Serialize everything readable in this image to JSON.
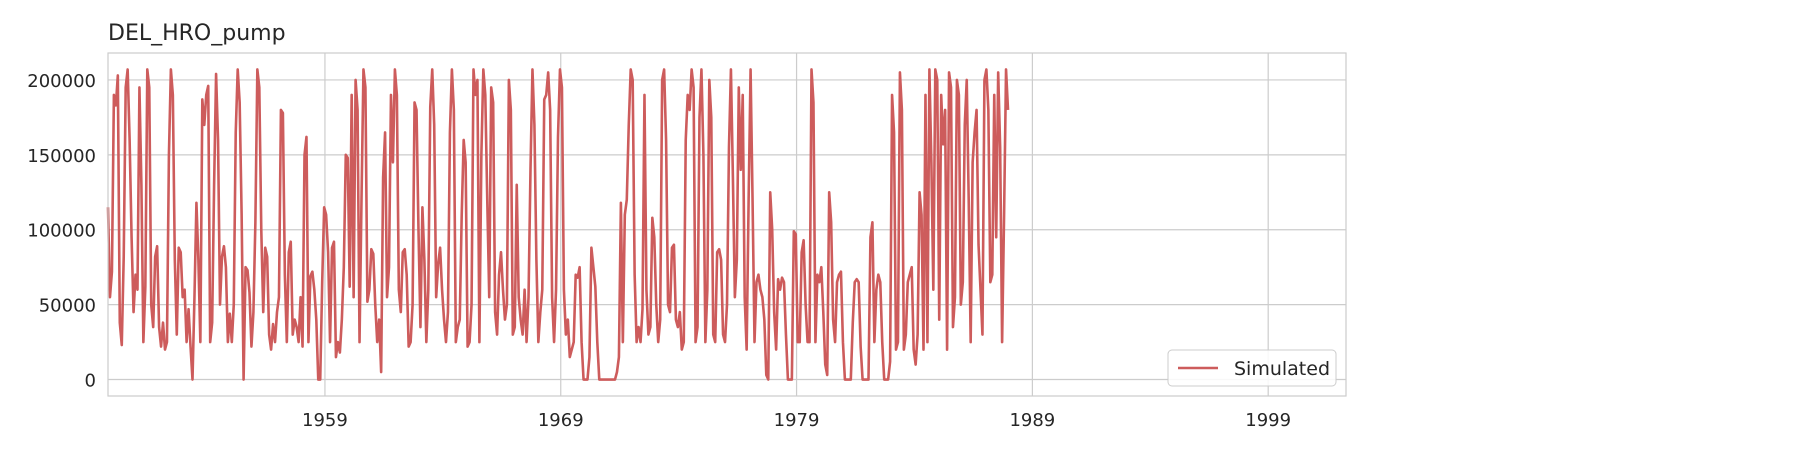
{
  "chart_data": {
    "type": "line",
    "title": "DEL_HRO_pump",
    "xlabel": "",
    "ylabel": "",
    "x_start_year": 1949.8,
    "x_step_months": 1,
    "xlim": [
      1949.8,
      2002.3
    ],
    "ylim": [
      -11000,
      218000
    ],
    "x_ticks": [
      1959,
      1969,
      1979,
      1989,
      1999
    ],
    "x_tick_labels": [
      "1959",
      "1969",
      "1979",
      "1989",
      "1999"
    ],
    "y_ticks": [
      0,
      50000,
      100000,
      150000,
      200000
    ],
    "y_tick_labels": [
      "0",
      "50000",
      "100000",
      "150000",
      "200000"
    ],
    "grid": true,
    "legend": {
      "position": "bottom-right",
      "entries": [
        "Simulated"
      ]
    },
    "series": [
      {
        "name": "Simulated",
        "color": "#cd5c5c",
        "values": [
          115000,
          55000,
          72000,
          190000,
          183000,
          203000,
          38000,
          23000,
          82000,
          195000,
          207000,
          160000,
          95000,
          45000,
          70000,
          60000,
          195000,
          130000,
          25000,
          62000,
          207000,
          195000,
          50000,
          35000,
          82000,
          89000,
          35000,
          22000,
          38000,
          20000,
          25000,
          150000,
          207000,
          190000,
          80000,
          30000,
          88000,
          85000,
          55000,
          60000,
          25000,
          47000,
          22000,
          0,
          55000,
          118000,
          80000,
          25000,
          187000,
          170000,
          190000,
          196000,
          25000,
          38000,
          130000,
          204000,
          160000,
          50000,
          82000,
          89000,
          75000,
          25000,
          44000,
          25000,
          50000,
          165000,
          207000,
          185000,
          110000,
          0,
          75000,
          73000,
          58000,
          22000,
          45000,
          105000,
          207000,
          195000,
          100000,
          45000,
          88000,
          82000,
          30000,
          20000,
          37000,
          25000,
          45000,
          55000,
          180000,
          178000,
          70000,
          25000,
          85000,
          92000,
          30000,
          40000,
          35000,
          25000,
          55000,
          22000,
          150000,
          162000,
          25000,
          69000,
          72000,
          60000,
          40000,
          0,
          0,
          65000,
          115000,
          110000,
          85000,
          25000,
          88000,
          92000,
          15000,
          25000,
          18000,
          40000,
          75000,
          150000,
          148000,
          62000,
          190000,
          55000,
          200000,
          180000,
          25000,
          120000,
          207000,
          195000,
          52000,
          60000,
          87000,
          84000,
          50000,
          25000,
          40000,
          5000,
          135000,
          165000,
          55000,
          75000,
          190000,
          145000,
          207000,
          190000,
          60000,
          45000,
          85000,
          87000,
          70000,
          22000,
          25000,
          50000,
          185000,
          180000,
          100000,
          35000,
          115000,
          80000,
          25000,
          60000,
          182000,
          207000,
          170000,
          55000,
          77000,
          88000,
          60000,
          40000,
          25000,
          45000,
          165000,
          207000,
          180000,
          25000,
          35000,
          40000,
          110000,
          160000,
          145000,
          22000,
          25000,
          50000,
          207000,
          190000,
          200000,
          25000,
          150000,
          207000,
          190000,
          120000,
          55000,
          195000,
          185000,
          45000,
          30000,
          70000,
          85000,
          60000,
          40000,
          50000,
          200000,
          180000,
          30000,
          35000,
          130000,
          55000,
          40000,
          30000,
          60000,
          25000,
          55000,
          140000,
          207000,
          170000,
          80000,
          25000,
          45000,
          60000,
          187000,
          190000,
          205000,
          180000,
          55000,
          25000,
          60000,
          162000,
          207000,
          195000,
          60000,
          30000,
          40000,
          15000,
          20000,
          25000,
          70000,
          68000,
          75000,
          25000,
          0,
          0,
          0,
          15000,
          88000,
          75000,
          62000,
          25000,
          0,
          0,
          0,
          0,
          0,
          0,
          0,
          0,
          0,
          5000,
          15000,
          118000,
          25000,
          110000,
          120000,
          170000,
          207000,
          200000,
          70000,
          25000,
          35000,
          25000,
          47000,
          190000,
          60000,
          30000,
          35000,
          108000,
          95000,
          50000,
          25000,
          40000,
          200000,
          207000,
          160000,
          50000,
          45000,
          88000,
          90000,
          40000,
          35000,
          45000,
          20000,
          25000,
          160000,
          190000,
          180000,
          207000,
          195000,
          25000,
          35000,
          175000,
          207000,
          150000,
          25000,
          60000,
          200000,
          175000,
          30000,
          25000,
          85000,
          87000,
          80000,
          30000,
          25000,
          50000,
          155000,
          207000,
          135000,
          55000,
          80000,
          195000,
          140000,
          190000,
          55000,
          20000,
          120000,
          207000,
          120000,
          25000,
          65000,
          70000,
          60000,
          55000,
          40000,
          3000,
          0,
          125000,
          100000,
          45000,
          20000,
          67000,
          60000,
          68000,
          65000,
          30000,
          0,
          0,
          0,
          99000,
          97000,
          25000,
          25000,
          85000,
          93000,
          50000,
          25000,
          25000,
          207000,
          185000,
          25000,
          70000,
          65000,
          75000,
          45000,
          10000,
          3000,
          125000,
          105000,
          40000,
          25000,
          65000,
          70000,
          72000,
          25000,
          0,
          0,
          0,
          0,
          38000,
          65000,
          67000,
          65000,
          22000,
          0,
          0,
          0,
          0,
          95000,
          105000,
          25000,
          60000,
          70000,
          65000,
          25000,
          0,
          0,
          0,
          12000,
          190000,
          165000,
          20000,
          25000,
          205000,
          180000,
          20000,
          30000,
          65000,
          70000,
          75000,
          20000,
          10000,
          30000,
          125000,
          110000,
          20000,
          190000,
          25000,
          207000,
          145000,
          60000,
          207000,
          200000,
          40000,
          190000,
          157000,
          180000,
          20000,
          205000,
          195000,
          35000,
          55000,
          200000,
          190000,
          50000,
          65000,
          170000,
          200000,
          120000,
          25000,
          145000,
          165000,
          180000,
          90000,
          60000,
          30000,
          200000,
          207000,
          180000,
          65000,
          70000,
          190000,
          95000,
          205000,
          155000,
          25000,
          110000,
          207000,
          180000
        ]
      }
    ]
  }
}
